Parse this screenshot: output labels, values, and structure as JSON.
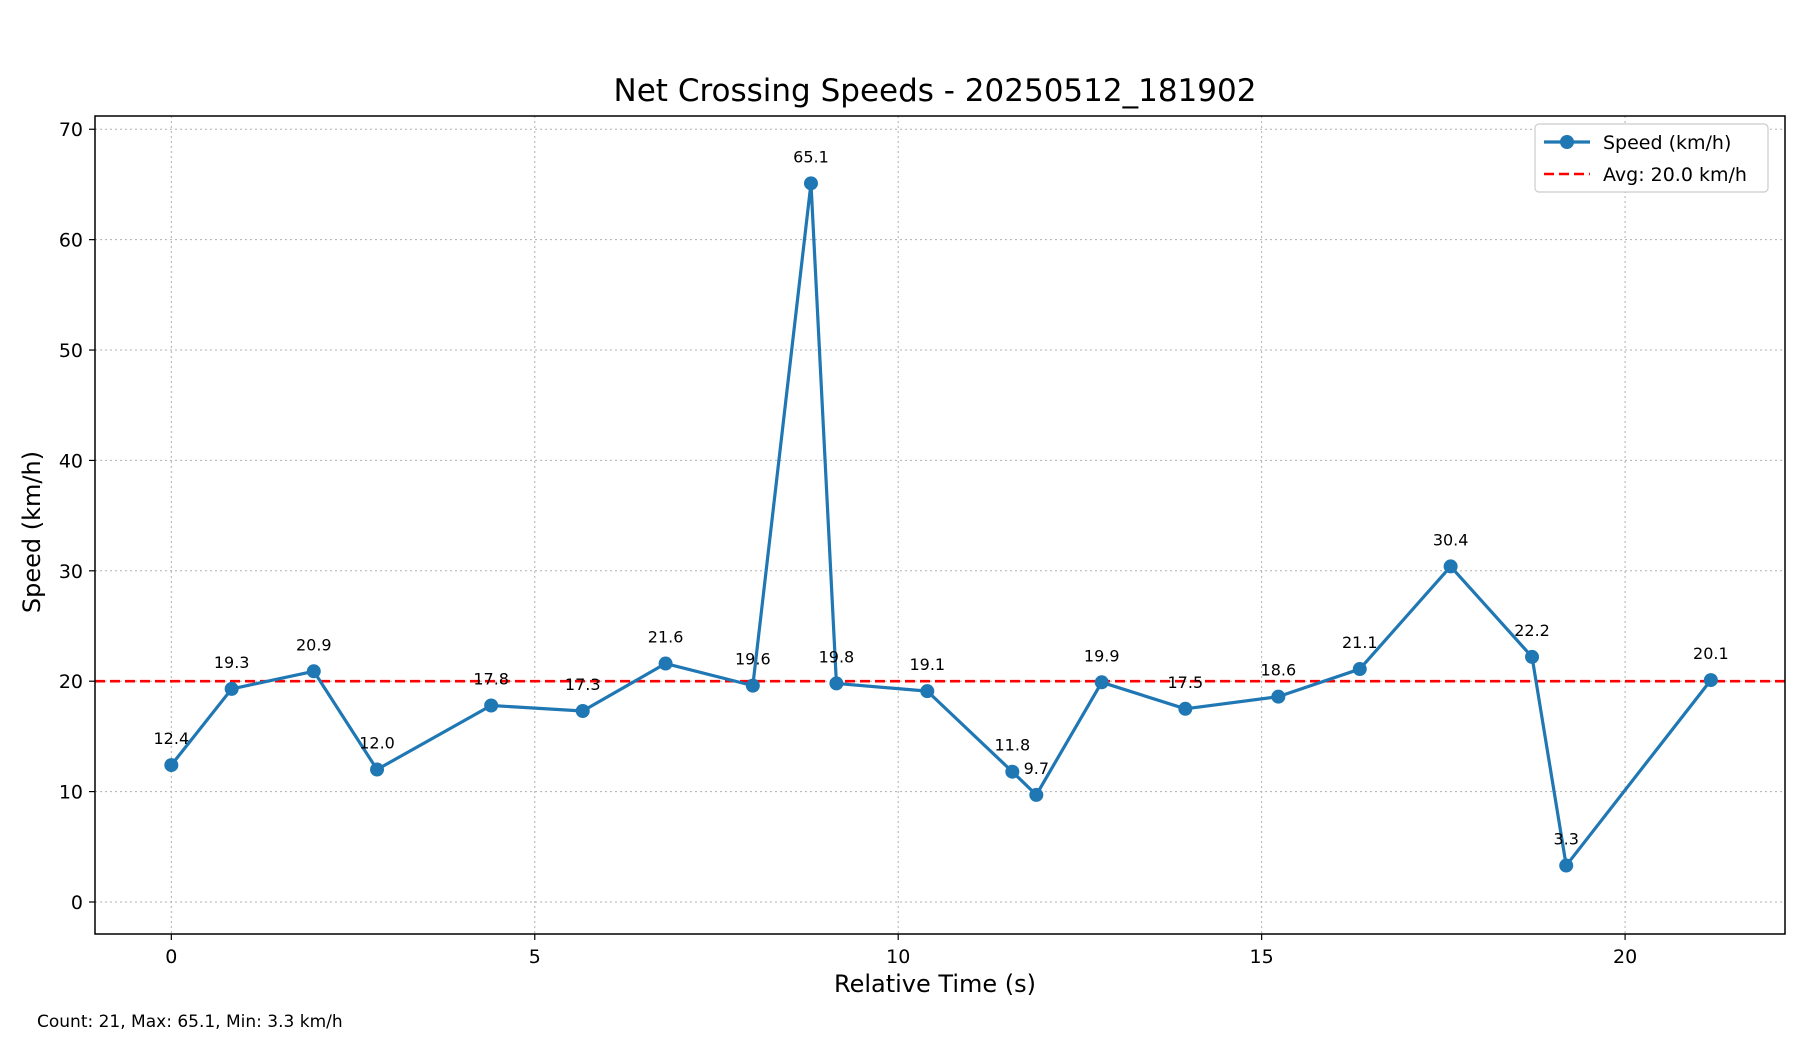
{
  "chart_data": {
    "type": "line",
    "title": "Net Crossing Speeds - 20250512_181902",
    "xlabel": "Relative Time (s)",
    "ylabel": "Speed (km/h)",
    "xlim": [
      -1.05,
      22.2
    ],
    "ylim": [
      -2.9,
      71.2
    ],
    "xticks": [
      0,
      5,
      10,
      15,
      20
    ],
    "yticks": [
      0,
      10,
      20,
      30,
      40,
      50,
      60,
      70
    ],
    "grid": true,
    "legend_position": "top-right",
    "series": [
      {
        "name": "Speed (km/h)",
        "color": "#1f77b4",
        "x": [
          0,
          0.83,
          1.96,
          2.83,
          4.4,
          5.66,
          6.8,
          8.0,
          8.8,
          9.15,
          10.4,
          11.57,
          11.9,
          12.8,
          13.95,
          15.23,
          16.35,
          17.6,
          18.72,
          19.19,
          21.18
        ],
        "y": [
          12.4,
          19.3,
          20.9,
          12.0,
          17.8,
          17.3,
          21.6,
          19.6,
          65.1,
          19.8,
          19.1,
          11.8,
          9.7,
          19.9,
          17.5,
          18.6,
          21.1,
          30.4,
          22.2,
          3.3,
          20.1
        ],
        "labels": [
          "12.4",
          "19.3",
          "20.9",
          "12.0",
          "17.8",
          "17.3",
          "21.6",
          "19.6",
          "65.1",
          "19.8",
          "19.1",
          "11.8",
          "9.7",
          "19.9",
          "17.5",
          "18.6",
          "21.1",
          "30.4",
          "22.2",
          "3.3",
          "20.1"
        ]
      }
    ],
    "average_line": {
      "name": "Avg: 20.0 km/h",
      "value": 20.0,
      "color": "#ff0000"
    }
  },
  "footer_text": "Count: 21, Max: 65.1, Min: 3.3 km/h"
}
